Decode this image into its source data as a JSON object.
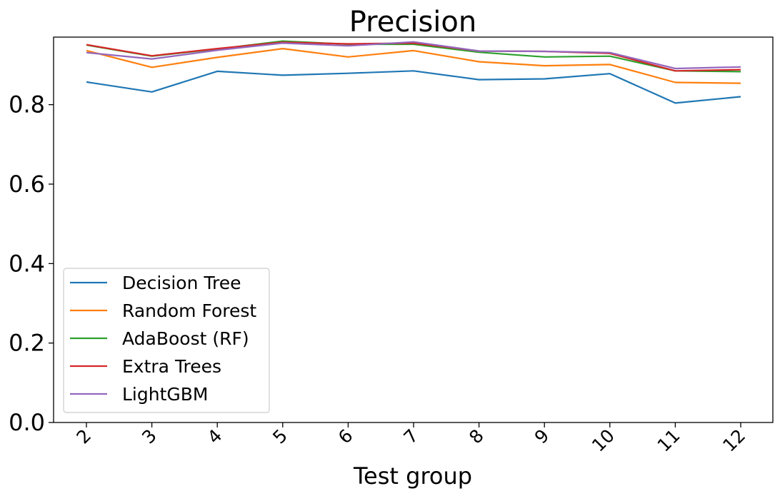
{
  "chart_data": {
    "type": "line",
    "title": "Precision",
    "xlabel": "Test group",
    "ylabel": "",
    "categories": [
      "2",
      "3",
      "4",
      "5",
      "6",
      "7",
      "8",
      "9",
      "10",
      "11",
      "12"
    ],
    "ylim": [
      0,
      0.97
    ],
    "yticks": [
      "0.0",
      "0.2",
      "0.4",
      "0.6",
      "0.8"
    ],
    "ytick_values": [
      0.0,
      0.2,
      0.4,
      0.6,
      0.8
    ],
    "grid": false,
    "legend_position": "lower-left",
    "series": [
      {
        "name": "Decision Tree",
        "color": "#1f77b4",
        "values": [
          0.857,
          0.832,
          0.884,
          0.874,
          0.879,
          0.885,
          0.863,
          0.865,
          0.878,
          0.804,
          0.82
        ]
      },
      {
        "name": "Random Forest",
        "color": "#ff7f0e",
        "values": [
          0.936,
          0.894,
          0.919,
          0.941,
          0.92,
          0.936,
          0.908,
          0.898,
          0.901,
          0.856,
          0.854
        ]
      },
      {
        "name": "AdaBoost (RF)",
        "color": "#2ca02c",
        "values": [
          0.95,
          0.922,
          0.94,
          0.96,
          0.952,
          0.952,
          0.932,
          0.92,
          0.922,
          0.885,
          0.883
        ]
      },
      {
        "name": "Extra Trees",
        "color": "#d62728",
        "values": [
          0.951,
          0.923,
          0.941,
          0.957,
          0.953,
          0.955,
          0.935,
          0.934,
          0.929,
          0.885,
          0.888
        ]
      },
      {
        "name": "LightGBM",
        "color": "#9467bd",
        "values": [
          0.931,
          0.915,
          0.937,
          0.955,
          0.948,
          0.958,
          0.935,
          0.934,
          0.931,
          0.891,
          0.895
        ]
      }
    ]
  }
}
